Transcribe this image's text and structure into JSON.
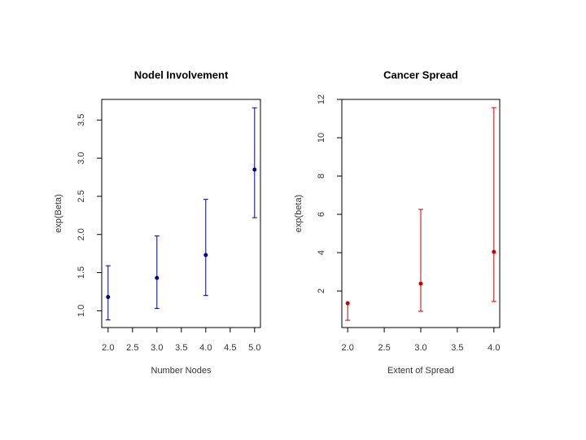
{
  "chart_data": [
    {
      "type": "errorbar",
      "title": "Nodel Involvement",
      "x_label": "Number Nodes",
      "y_label": "exp(Beta)",
      "color": "#00008b",
      "x": [
        2,
        3,
        4,
        5
      ],
      "values": [
        1.18,
        1.43,
        1.73,
        2.85
      ],
      "lower": [
        0.88,
        1.03,
        1.2,
        2.22
      ],
      "upper": [
        1.59,
        1.98,
        2.46,
        3.66
      ],
      "xlim": [
        1.87,
        5.12
      ],
      "ylim": [
        0.78,
        3.77
      ],
      "xticks": [
        {
          "value": 2,
          "label": "2.0"
        },
        {
          "value": 2.5,
          "label": "2.5"
        },
        {
          "value": 3,
          "label": "3.0"
        },
        {
          "value": 3.5,
          "label": "3.5"
        },
        {
          "value": 4,
          "label": "4.0"
        },
        {
          "value": 4.5,
          "label": "4.5"
        },
        {
          "value": 5,
          "label": "5.0"
        }
      ],
      "yticks": [
        {
          "value": 1,
          "label": "1.0"
        },
        1.5,
        {
          "value": 2,
          "label": "2.0"
        },
        2.5,
        {
          "value": 3,
          "label": "3.0"
        },
        3.5
      ]
    },
    {
      "type": "errorbar",
      "title": "Cancer Spread",
      "x_label": "Extent of Spread",
      "y_label": "exp(beta)",
      "color": "#cc0000",
      "x": [
        2,
        3,
        4
      ],
      "values": [
        1.36,
        2.38,
        4.04
      ],
      "lower": [
        0.47,
        0.94,
        1.45
      ],
      "upper": [
        null,
        6.26,
        11.57
      ],
      "xlim": [
        1.92,
        4.08
      ],
      "ylim": [
        0.09,
        12
      ],
      "xticks": [
        {
          "value": 2,
          "label": "2.0"
        },
        2.5,
        {
          "value": 3,
          "label": "3.0"
        },
        3.5,
        {
          "value": 4,
          "label": "4.0"
        }
      ],
      "yticks": [
        2,
        4,
        6,
        8,
        10,
        12
      ]
    }
  ]
}
